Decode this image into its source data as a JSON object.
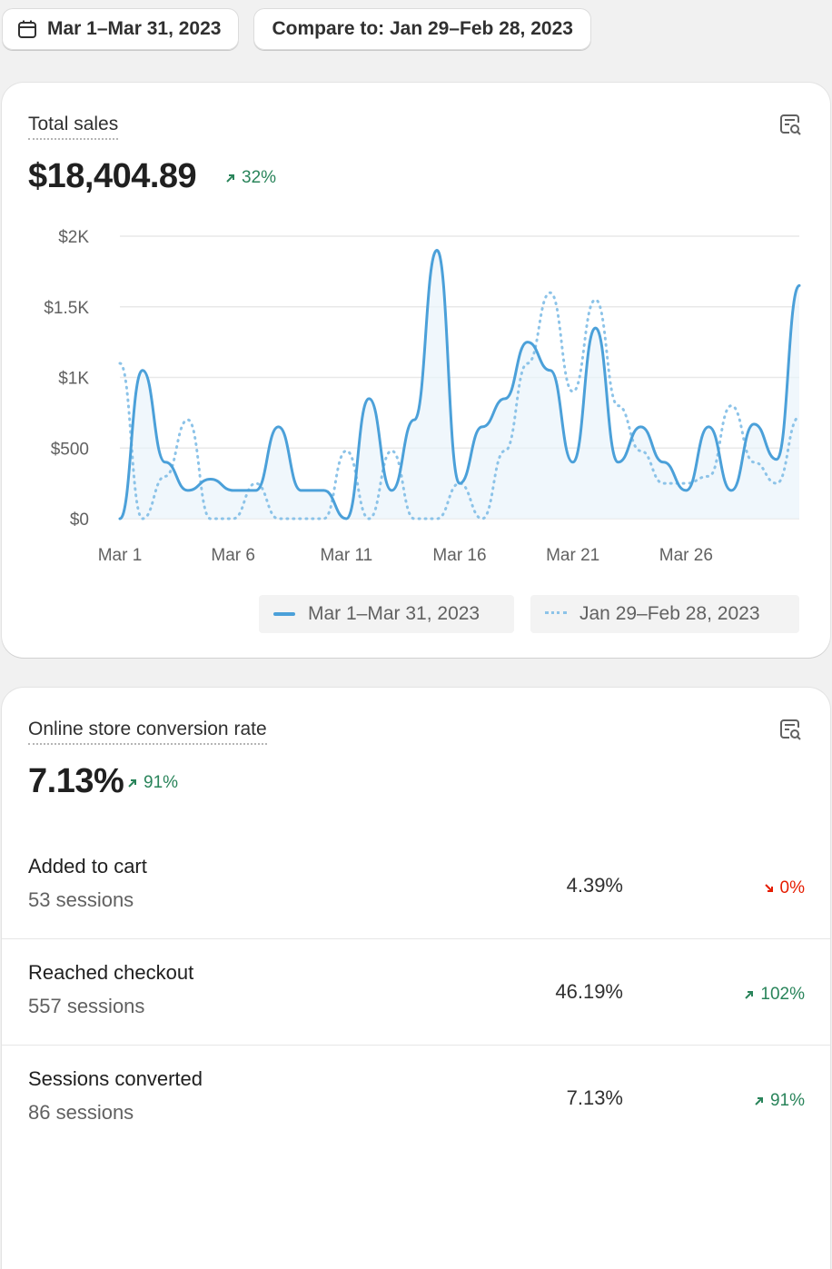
{
  "toolbar": {
    "date_range": "Mar 1–Mar 31, 2023",
    "compare_label": "Compare to: Jan 29–Feb 28, 2023"
  },
  "sales_card": {
    "title": "Total sales",
    "value": "$18,404.89",
    "delta": "32%",
    "delta_direction": "up",
    "report_icon": "report-search-icon",
    "legend": {
      "current": "Mar 1–Mar 31, 2023",
      "previous": "Jan 29–Feb 28, 2023"
    }
  },
  "chart_data": {
    "type": "line",
    "title": "Total sales",
    "xlabel": "",
    "ylabel": "",
    "x_tick_labels": [
      "Mar 1",
      "Mar 6",
      "Mar 11",
      "Mar 16",
      "Mar 21",
      "Mar 26"
    ],
    "y_tick_labels": [
      "$0",
      "$500",
      "$1K",
      "$1.5K",
      "$2K"
    ],
    "y_ticks": [
      0,
      500,
      1000,
      1500,
      2000
    ],
    "ylim": [
      0,
      2000
    ],
    "x": [
      1,
      2,
      3,
      4,
      5,
      6,
      7,
      8,
      9,
      10,
      11,
      12,
      13,
      14,
      15,
      16,
      17,
      18,
      19,
      20,
      21,
      22,
      23,
      24,
      25,
      26,
      27,
      28,
      29,
      30,
      31
    ],
    "series": [
      {
        "name": "Mar 1–Mar 31, 2023",
        "style": "solid",
        "color": "#4ba0d9",
        "values": [
          0,
          1050,
          400,
          200,
          280,
          200,
          200,
          650,
          200,
          200,
          0,
          850,
          200,
          700,
          1900,
          250,
          650,
          850,
          1250,
          1050,
          400,
          1350,
          400,
          650,
          400,
          200,
          650,
          200,
          670,
          420,
          1650
        ]
      },
      {
        "name": "Jan 29–Feb 28, 2023",
        "style": "dotted",
        "color": "#8cc3e8",
        "values": [
          1100,
          0,
          300,
          700,
          0,
          0,
          250,
          0,
          0,
          0,
          480,
          0,
          480,
          0,
          0,
          250,
          0,
          480,
          1100,
          1600,
          900,
          1550,
          800,
          480,
          250,
          250,
          300,
          800,
          400,
          250,
          720
        ]
      }
    ],
    "grid": true,
    "legend_position": "bottom-right"
  },
  "conversion_card": {
    "title": "Online store conversion rate",
    "value": "7.13%",
    "delta": "91%",
    "delta_direction": "up",
    "report_icon": "report-search-icon",
    "rows": [
      {
        "label": "Added to cart",
        "sessions": "53 sessions",
        "rate": "4.39%",
        "delta": "0%",
        "direction": "down"
      },
      {
        "label": "Reached checkout",
        "sessions": "557 sessions",
        "rate": "46.19%",
        "delta": "102%",
        "direction": "up"
      },
      {
        "label": "Sessions converted",
        "sessions": "86 sessions",
        "rate": "7.13%",
        "delta": "91%",
        "direction": "up"
      }
    ]
  }
}
